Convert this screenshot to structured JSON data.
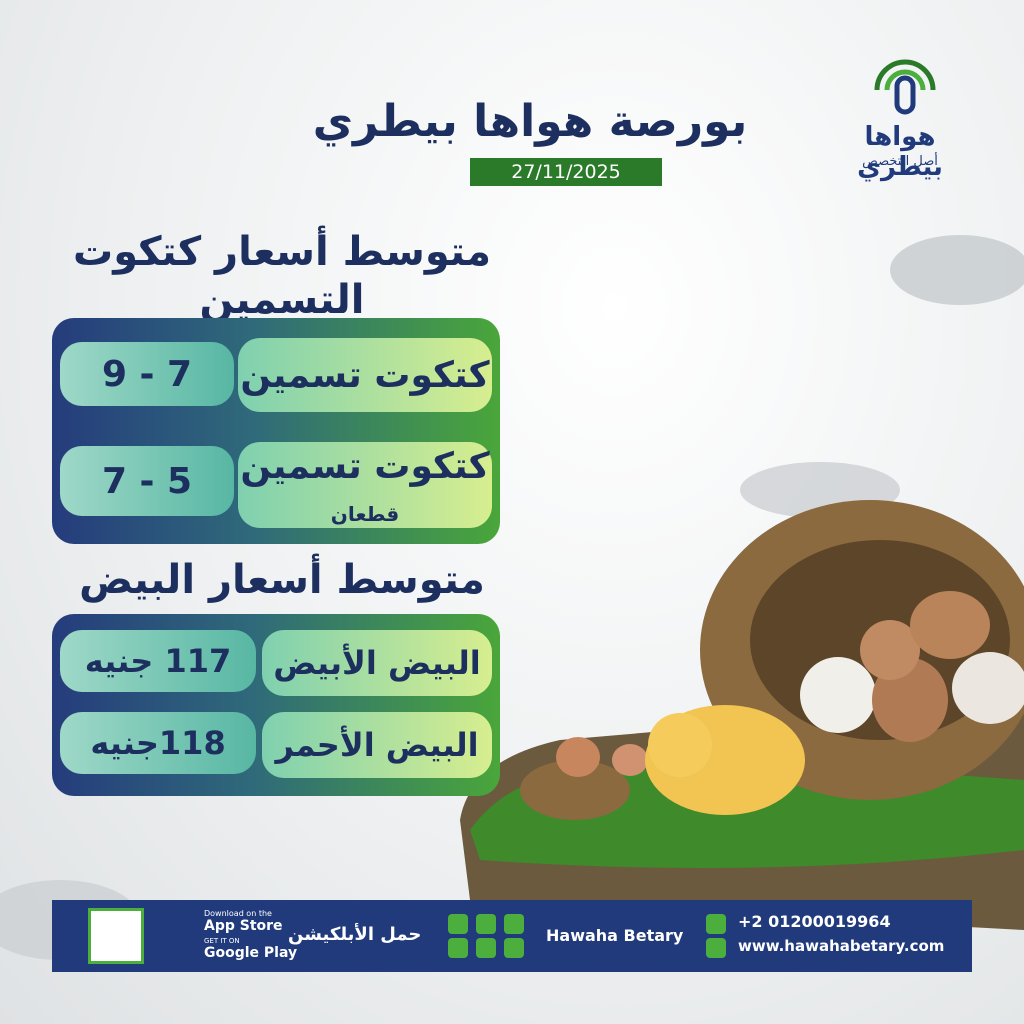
{
  "header": {
    "title": "بورصة هواها بيطري",
    "date": "27/11/2025"
  },
  "logo": {
    "name": "هواها بيطري",
    "tagline": "أصل التخصص"
  },
  "chicks": {
    "title": "متوسط أسعار كتكوت التسمين",
    "rows": [
      {
        "label": "كتكوت تسمين",
        "price": "7 - 9"
      },
      {
        "label": "كتكوت تسمين",
        "sublabel": "قطعان",
        "price": "5 - 7"
      }
    ]
  },
  "eggs": {
    "title": "متوسط أسعار البيض",
    "rows": [
      {
        "label": "البيض الأبيض",
        "price": "117 جنيه"
      },
      {
        "label": "البيض الأحمر",
        "price": "118جنيه"
      }
    ]
  },
  "footer": {
    "app_store_small": "Download on the",
    "app_store": "App Store",
    "google_play_small": "GET IT ON",
    "google_play": "Google Play",
    "download": "حمل الأبلكيشن",
    "brand": "Hawaha Betary",
    "phone": "+2 01200019964",
    "website": "www.hawahabetary.com"
  }
}
